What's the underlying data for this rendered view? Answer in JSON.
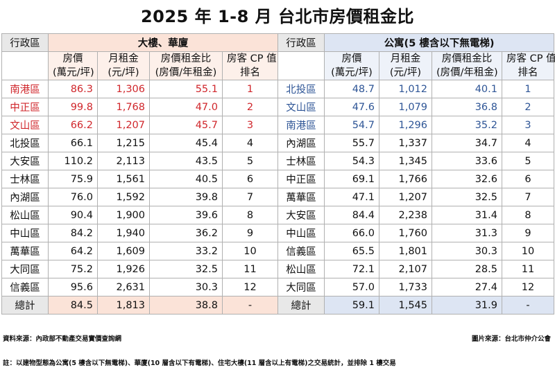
{
  "title": "2025 年 1-8 月 台北市房價租金比",
  "header": {
    "district": "行政區",
    "group_dalou": "大樓、華廈",
    "group_apartment": "公寓(5 樓含以下無電梯)",
    "price_l1": "房價",
    "price_l2": "(萬元/坪)",
    "rent_l1": "月租金",
    "rent_l2": "(元/坪)",
    "ratio_l1": "房價租金比",
    "ratio_l2": "(房價/年租金)",
    "rank_l1": "房客 CP 值",
    "rank_l2": "排名"
  },
  "rows": [
    {
      "dl_district": "南港區",
      "dl_price": "86.3",
      "dl_rent": "1,306",
      "dl_ratio": "55.1",
      "dl_rank": "1",
      "ap_district": "北投區",
      "ap_price": "48.7",
      "ap_rent": "1,012",
      "ap_ratio": "40.1",
      "ap_rank": "1"
    },
    {
      "dl_district": "中正區",
      "dl_price": "99.8",
      "dl_rent": "1,768",
      "dl_ratio": "47.0",
      "dl_rank": "2",
      "ap_district": "文山區",
      "ap_price": "47.6",
      "ap_rent": "1,079",
      "ap_ratio": "36.8",
      "ap_rank": "2"
    },
    {
      "dl_district": "文山區",
      "dl_price": "66.2",
      "dl_rent": "1,207",
      "dl_ratio": "45.7",
      "dl_rank": "3",
      "ap_district": "南港區",
      "ap_price": "54.7",
      "ap_rent": "1,296",
      "ap_ratio": "35.2",
      "ap_rank": "3"
    },
    {
      "dl_district": "北投區",
      "dl_price": "66.1",
      "dl_rent": "1,215",
      "dl_ratio": "45.4",
      "dl_rank": "4",
      "ap_district": "內湖區",
      "ap_price": "55.7",
      "ap_rent": "1,337",
      "ap_ratio": "34.7",
      "ap_rank": "4"
    },
    {
      "dl_district": "大安區",
      "dl_price": "110.2",
      "dl_rent": "2,113",
      "dl_ratio": "43.5",
      "dl_rank": "5",
      "ap_district": "士林區",
      "ap_price": "54.3",
      "ap_rent": "1,345",
      "ap_ratio": "33.6",
      "ap_rank": "5"
    },
    {
      "dl_district": "士林區",
      "dl_price": "75.9",
      "dl_rent": "1,561",
      "dl_ratio": "40.5",
      "dl_rank": "6",
      "ap_district": "中正區",
      "ap_price": "69.1",
      "ap_rent": "1,766",
      "ap_ratio": "32.6",
      "ap_rank": "6"
    },
    {
      "dl_district": "內湖區",
      "dl_price": "76.0",
      "dl_rent": "1,592",
      "dl_ratio": "39.8",
      "dl_rank": "7",
      "ap_district": "萬華區",
      "ap_price": "47.1",
      "ap_rent": "1,207",
      "ap_ratio": "32.5",
      "ap_rank": "7"
    },
    {
      "dl_district": "松山區",
      "dl_price": "90.4",
      "dl_rent": "1,900",
      "dl_ratio": "39.6",
      "dl_rank": "8",
      "ap_district": "大安區",
      "ap_price": "84.4",
      "ap_rent": "2,238",
      "ap_ratio": "31.4",
      "ap_rank": "8"
    },
    {
      "dl_district": "中山區",
      "dl_price": "84.2",
      "dl_rent": "1,940",
      "dl_ratio": "36.2",
      "dl_rank": "9",
      "ap_district": "中山區",
      "ap_price": "66.0",
      "ap_rent": "1,760",
      "ap_ratio": "31.3",
      "ap_rank": "9"
    },
    {
      "dl_district": "萬華區",
      "dl_price": "64.2",
      "dl_rent": "1,609",
      "dl_ratio": "33.2",
      "dl_rank": "10",
      "ap_district": "信義區",
      "ap_price": "65.5",
      "ap_rent": "1,801",
      "ap_ratio": "30.3",
      "ap_rank": "10"
    },
    {
      "dl_district": "大同區",
      "dl_price": "75.2",
      "dl_rent": "1,926",
      "dl_ratio": "32.5",
      "dl_rank": "11",
      "ap_district": "松山區",
      "ap_price": "72.1",
      "ap_rent": "2,107",
      "ap_ratio": "28.5",
      "ap_rank": "11"
    },
    {
      "dl_district": "信義區",
      "dl_price": "95.6",
      "dl_rent": "2,631",
      "dl_ratio": "30.3",
      "dl_rank": "12",
      "ap_district": "大同區",
      "ap_price": "57.0",
      "ap_rent": "1,733",
      "ap_ratio": "27.4",
      "ap_rank": "12"
    }
  ],
  "total": {
    "dl_label": "總計",
    "dl_price": "84.5",
    "dl_rent": "1,813",
    "dl_ratio": "38.8",
    "dl_rank": "-",
    "ap_label": "總計",
    "ap_price": "59.1",
    "ap_rent": "1,545",
    "ap_ratio": "31.9",
    "ap_rank": "-"
  },
  "source": "資料來源：內政部不動產交易實價查詢網",
  "credit": "圖片來源：台北市仲介公會",
  "note": "註：以建物型態為公寓(5 樓含以下無電梯)、華廈(10 層含以下有電梯)、住宅大樓(11 層含以上有電梯)之交易統計，並排除 1 樓交易",
  "colors": {
    "top3_dalou": "#d0262b",
    "top3_apartment": "#2e5596",
    "dalou_header_bg": "#fbe3d8",
    "apartment_header_bg": "#dde5f3"
  }
}
